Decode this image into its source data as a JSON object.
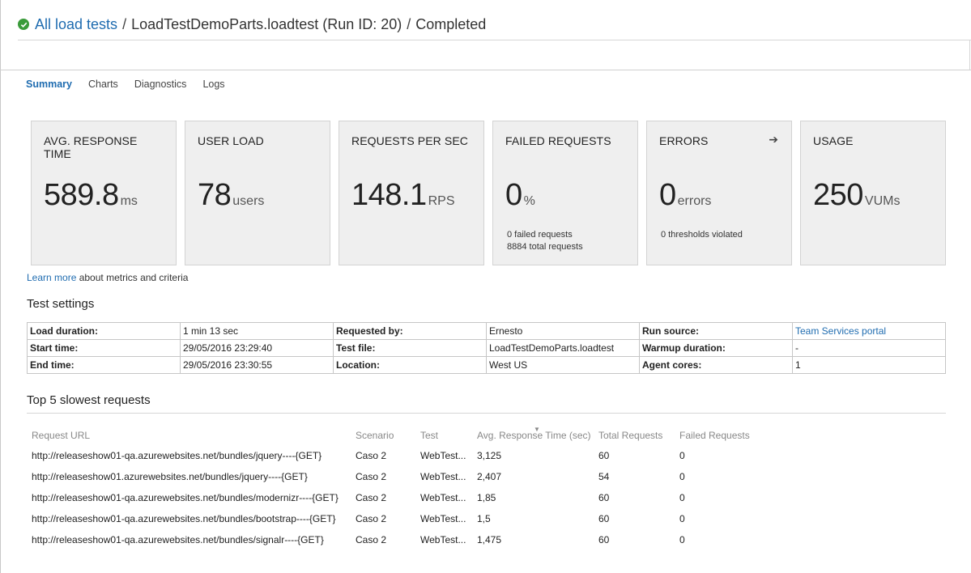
{
  "header": {
    "breadcrumb_link": "All load tests",
    "separator": "/",
    "test_name": "LoadTestDemoParts.loadtest (Run ID: 20)",
    "status": "Completed",
    "status_color": "#3a9b3a"
  },
  "tabs": [
    {
      "label": "Summary",
      "active": true
    },
    {
      "label": "Charts"
    },
    {
      "label": "Diagnostics"
    },
    {
      "label": "Logs"
    }
  ],
  "cards": [
    {
      "title": "AVG. RESPONSE TIME",
      "value": "589.8",
      "unit": "ms"
    },
    {
      "title": "USER LOAD",
      "value": "78",
      "unit": "users"
    },
    {
      "title": "REQUESTS PER SEC",
      "value": "148.1",
      "unit": "RPS"
    },
    {
      "title": "FAILED REQUESTS",
      "value": "0",
      "unit": "%",
      "sub1": "0 failed requests",
      "sub2": "8884 total requests"
    },
    {
      "title": "ERRORS",
      "value": "0",
      "unit": "errors",
      "sub1": "0 thresholds violated",
      "arrow": "➔"
    },
    {
      "title": "USAGE",
      "value": "250",
      "unit": "VUMs"
    }
  ],
  "learn_more": {
    "link": "Learn more",
    "text": " about metrics and criteria"
  },
  "test_settings": {
    "title": "Test settings",
    "rows": [
      [
        {
          "k": "Load duration:",
          "v": "1 min 13 sec"
        },
        {
          "k": "Requested by:",
          "v": "Ernesto"
        },
        {
          "k": "Run source:",
          "v": "Team Services portal"
        }
      ],
      [
        {
          "k": "Start time:",
          "v": "29/05/2016 23:29:40"
        },
        {
          "k": "Test file:",
          "v": "LoadTestDemoParts.loadtest"
        },
        {
          "k": "Warmup duration:",
          "v": "-"
        }
      ],
      [
        {
          "k": "End time:",
          "v": "29/05/2016 23:30:55"
        },
        {
          "k": "Location:",
          "v": "West US"
        },
        {
          "k": "Agent cores:",
          "v": "1"
        }
      ]
    ]
  },
  "slowest": {
    "title": "Top 5 slowest requests",
    "columns": [
      "Request URL",
      "Scenario",
      "Test",
      "Avg. Response Time (sec)",
      "Total Requests",
      "Failed Requests"
    ],
    "rows": [
      [
        "http://releaseshow01-qa.azurewebsites.net/bundles/jquery----{GET}",
        "Caso 2",
        "WebTest...",
        "3,125",
        "60",
        "0"
      ],
      [
        "http://releaseshow01.azurewebsites.net/bundles/jquery----{GET}",
        "Caso 2",
        "WebTest...",
        "2,407",
        "54",
        "0"
      ],
      [
        "http://releaseshow01-qa.azurewebsites.net/bundles/modernizr----{GET}",
        "Caso 2",
        "WebTest...",
        "1,85",
        "60",
        "0"
      ],
      [
        "http://releaseshow01-qa.azurewebsites.net/bundles/bootstrap----{GET}",
        "Caso 2",
        "WebTest...",
        "1,5",
        "60",
        "0"
      ],
      [
        "http://releaseshow01-qa.azurewebsites.net/bundles/signalr----{GET}",
        "Caso 2",
        "WebTest...",
        "1,475",
        "60",
        "0"
      ]
    ]
  }
}
